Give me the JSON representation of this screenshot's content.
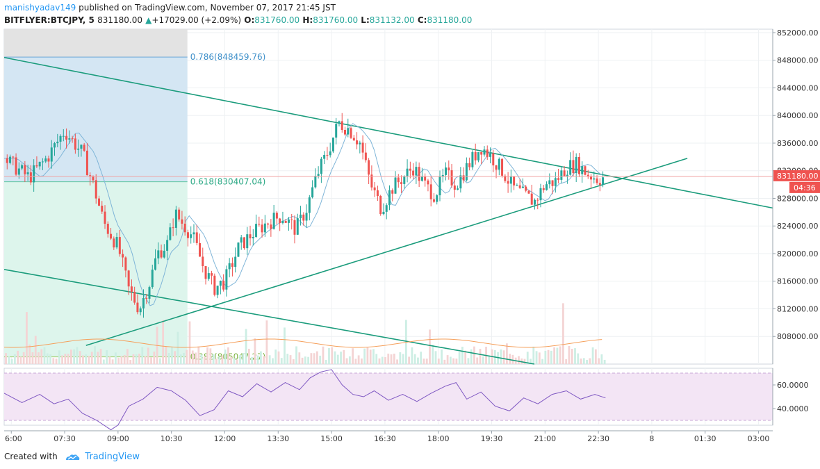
{
  "header": {
    "author": "manishyadav149",
    "published": "published on TradingView.com, November 07, 2017 21:45 JST",
    "symbol": "BITFLYER:BTCJPY, 5",
    "last": "831180.00",
    "change_arrow": "▲",
    "change": "+17029.00 (+2.09%)",
    "o_label": "O:",
    "o_value": "831760.00",
    "h_label": "H:",
    "h_value": "831760.00",
    "l_label": "L:",
    "l_value": "831132.00",
    "c_label": "C:",
    "c_value": "831180.00"
  },
  "footer": {
    "created_with": "Created with",
    "brand": "TradingView"
  },
  "colors": {
    "up": "#26a69a",
    "down": "#ef5350",
    "trend": "#1b9c7c",
    "ma": "#7fb5d8",
    "vol_ma": "#f59f5a",
    "rsi": "#7e57c2",
    "rsi_band": "#f3e5f5",
    "fib_blue": "#d4e6f3",
    "fib_green": "#ddf5ec",
    "fib_gray": "#e3e3e3"
  },
  "chart_data": {
    "type": "candlestick",
    "symbol": "BITFLYER:BTCJPY",
    "interval": "5",
    "y_axis": {
      "ticks": [
        "852000.00",
        "848000.00",
        "844000.00",
        "840000.00",
        "836000.00",
        "832000.00",
        "828000.00",
        "824000.00",
        "820000.00",
        "816000.00",
        "812000.00",
        "808000.00"
      ],
      "range": [
        804000,
        852500
      ]
    },
    "x_axis": {
      "ticks": [
        "6:00",
        "07:30",
        "09:00",
        "10:30",
        "12:00",
        "13:30",
        "15:00",
        "16:30",
        "18:00",
        "19:30",
        "21:00",
        "22:30",
        "8",
        "01:30",
        "03:00"
      ]
    },
    "last_price_label": "831180.00",
    "countdown_label": "04:36",
    "fibonacci": [
      {
        "label": "0.786(848459.76)",
        "price": 848459.76
      },
      {
        "label": "0.618(830407.04)",
        "price": 830407.04
      },
      {
        "label": "0.382(805047.27)",
        "price": 805047.27
      }
    ],
    "price_path": [
      [
        5.8,
        833800
      ],
      [
        6.5,
        831000
      ],
      [
        7.0,
        833800
      ],
      [
        7.5,
        837800
      ],
      [
        8.0,
        834500
      ],
      [
        8.3,
        830000
      ],
      [
        8.6,
        824500
      ],
      [
        9.0,
        821000
      ],
      [
        9.3,
        814800
      ],
      [
        9.6,
        812000
      ],
      [
        9.9,
        816000
      ],
      [
        10.1,
        820000
      ],
      [
        10.4,
        821500
      ],
      [
        10.6,
        825800
      ],
      [
        10.8,
        824500
      ],
      [
        11.1,
        822500
      ],
      [
        11.4,
        818000
      ],
      [
        11.7,
        815000
      ],
      [
        12.0,
        816000
      ],
      [
        12.4,
        821000
      ],
      [
        12.8,
        823000
      ],
      [
        13.2,
        824500
      ],
      [
        13.6,
        825500
      ],
      [
        14.0,
        823500
      ],
      [
        14.3,
        826500
      ],
      [
        14.6,
        831500
      ],
      [
        14.9,
        834800
      ],
      [
        15.2,
        839000
      ],
      [
        15.5,
        838000
      ],
      [
        15.8,
        836000
      ],
      [
        16.1,
        830000
      ],
      [
        16.4,
        826500
      ],
      [
        16.7,
        829500
      ],
      [
        17.0,
        831000
      ],
      [
        17.3,
        832500
      ],
      [
        17.6,
        830000
      ],
      [
        17.9,
        828500
      ],
      [
        18.2,
        831500
      ],
      [
        18.5,
        830000
      ],
      [
        18.8,
        832500
      ],
      [
        19.2,
        835500
      ],
      [
        19.5,
        834000
      ],
      [
        19.8,
        832000
      ],
      [
        20.1,
        829500
      ],
      [
        20.4,
        828500
      ],
      [
        20.7,
        827500
      ],
      [
        21.0,
        830000
      ],
      [
        21.3,
        830500
      ],
      [
        21.6,
        832500
      ],
      [
        21.9,
        833000
      ],
      [
        22.2,
        831500
      ],
      [
        22.5,
        830800
      ],
      [
        22.7,
        831180
      ]
    ],
    "rsi": {
      "ticks": [
        "60.0000",
        "40.0000"
      ],
      "path": [
        [
          5.8,
          53
        ],
        [
          6.3,
          45
        ],
        [
          6.8,
          52
        ],
        [
          7.2,
          44
        ],
        [
          7.6,
          48
        ],
        [
          8.0,
          36
        ],
        [
          8.4,
          30
        ],
        [
          8.8,
          22
        ],
        [
          9.0,
          26
        ],
        [
          9.3,
          42
        ],
        [
          9.7,
          48
        ],
        [
          10.1,
          58
        ],
        [
          10.5,
          55
        ],
        [
          10.9,
          47
        ],
        [
          11.3,
          34
        ],
        [
          11.7,
          39
        ],
        [
          12.1,
          55
        ],
        [
          12.5,
          50
        ],
        [
          12.9,
          61
        ],
        [
          13.3,
          54
        ],
        [
          13.7,
          62
        ],
        [
          14.1,
          56
        ],
        [
          14.4,
          66
        ],
        [
          14.7,
          71
        ],
        [
          15.0,
          73
        ],
        [
          15.3,
          60
        ],
        [
          15.6,
          52
        ],
        [
          15.9,
          50
        ],
        [
          16.2,
          55
        ],
        [
          16.6,
          47
        ],
        [
          17.0,
          52
        ],
        [
          17.4,
          46
        ],
        [
          17.8,
          53
        ],
        [
          18.2,
          59
        ],
        [
          18.5,
          62
        ],
        [
          18.8,
          48
        ],
        [
          19.2,
          54
        ],
        [
          19.6,
          42
        ],
        [
          20.0,
          38
        ],
        [
          20.4,
          49
        ],
        [
          20.8,
          44
        ],
        [
          21.2,
          52
        ],
        [
          21.6,
          55
        ],
        [
          22.0,
          48
        ],
        [
          22.4,
          52
        ],
        [
          22.7,
          49
        ]
      ]
    }
  }
}
